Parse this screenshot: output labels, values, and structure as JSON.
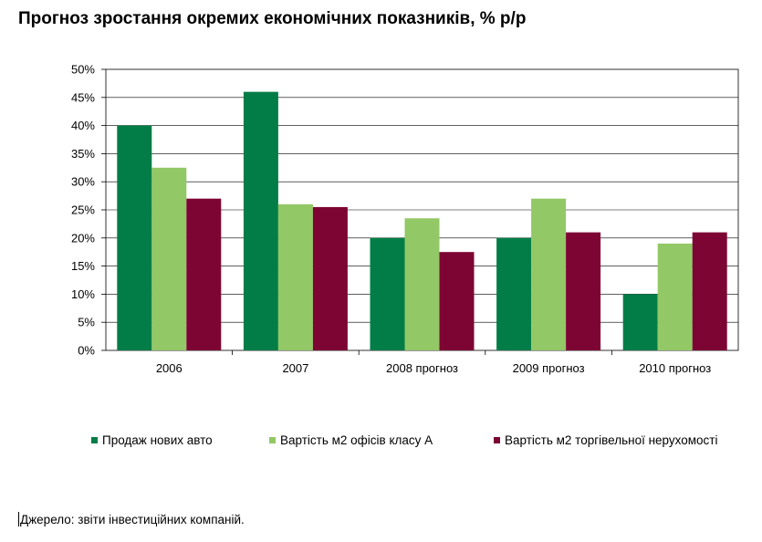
{
  "chart_data": {
    "type": "bar",
    "title": "Прогноз зростання окремих економічних показників, % р/р",
    "categories": [
      "2006",
      "2007",
      "2008 прогноз",
      "2009 прогноз",
      "2010 прогноз"
    ],
    "series": [
      {
        "name": "Продаж нових авто",
        "color": "#037d47",
        "values": [
          40,
          46,
          20,
          20,
          10
        ]
      },
      {
        "name": "Вартість м2 офісів класу А",
        "color": "#92c865",
        "values": [
          32.5,
          26,
          23.5,
          27,
          19
        ]
      },
      {
        "name": "Вартість м2 торгівельної нерухомості",
        "color": "#7d0533",
        "values": [
          27,
          25.5,
          17.5,
          21,
          21
        ]
      }
    ],
    "ylim": [
      0,
      50
    ],
    "yticks": [
      "0%",
      "5%",
      "10%",
      "15%",
      "20%",
      "25%",
      "30%",
      "35%",
      "40%",
      "45%",
      "50%"
    ],
    "xlabel": "",
    "ylabel": "",
    "grid": true,
    "legend_position": "bottom"
  },
  "source": "Джерело: звіти інвестиційних компаній."
}
